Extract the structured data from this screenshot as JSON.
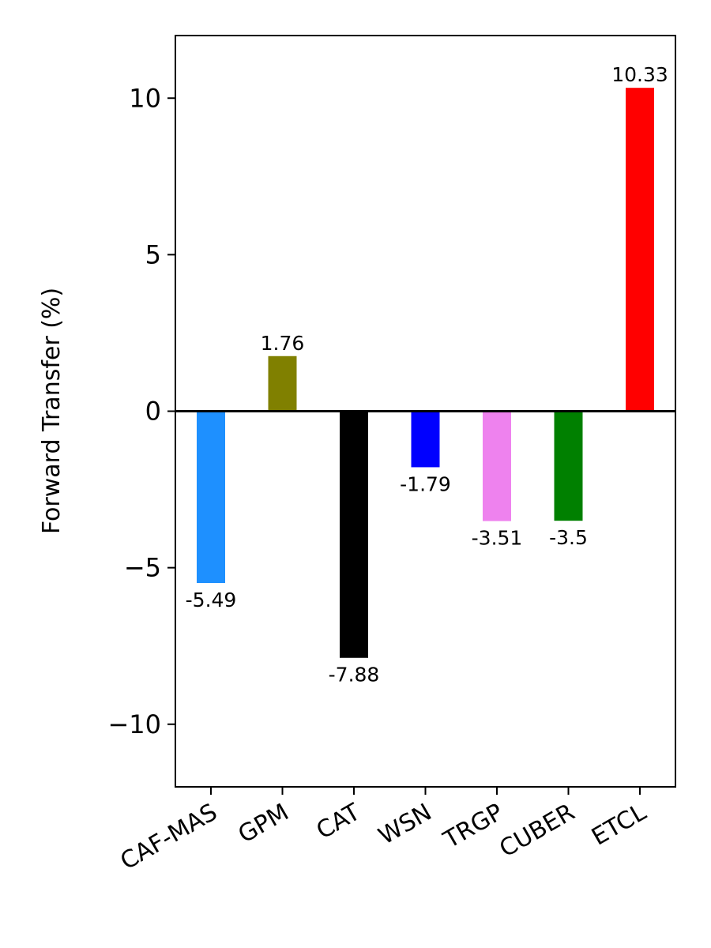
{
  "chart_data": {
    "type": "bar",
    "title": "",
    "xlabel": "",
    "ylabel": "Forward Transfer (%)",
    "ylim": [
      -12,
      12
    ],
    "yticks": [
      {
        "value": 10,
        "label": "10"
      },
      {
        "value": 5,
        "label": "5"
      },
      {
        "value": 0,
        "label": "0"
      },
      {
        "value": -5,
        "label": "−5"
      },
      {
        "value": -10,
        "label": "−10"
      }
    ],
    "categories": [
      "CAF-MAS",
      "GPM",
      "CAT",
      "WSN",
      "TRGP",
      "CUBER",
      "ETCL"
    ],
    "values": [
      -5.49,
      1.76,
      -7.88,
      -1.79,
      -3.51,
      -3.5,
      10.33
    ],
    "value_labels": [
      "-5.49",
      "1.76",
      "-7.88",
      "-1.79",
      "-3.51",
      "-3.5",
      "10.33"
    ],
    "colors": [
      "#1e90ff",
      "#808000",
      "#000000",
      "#0000ff",
      "#ee82ee",
      "#008000",
      "#ff0000"
    ],
    "zero_line": true,
    "grid": false,
    "legend": "none"
  }
}
